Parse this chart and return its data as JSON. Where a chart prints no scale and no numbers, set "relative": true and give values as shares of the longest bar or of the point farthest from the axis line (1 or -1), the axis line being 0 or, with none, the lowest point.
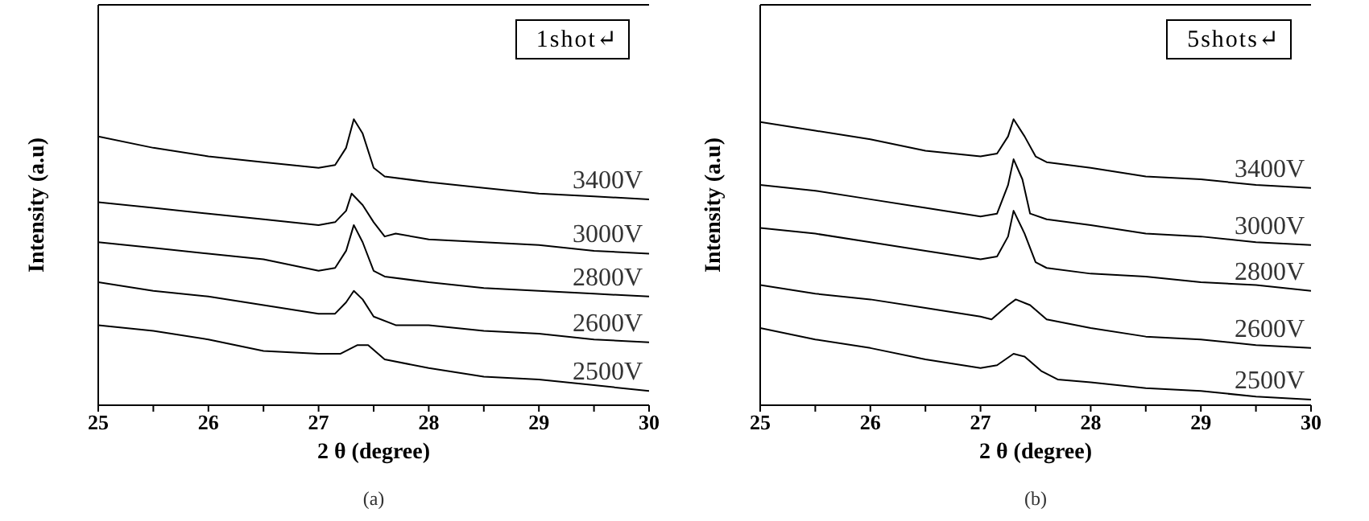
{
  "chart_data": [
    {
      "type": "line",
      "relative": true,
      "xlabel": "2 θ (degree)",
      "ylabel": "Intensity (a.u)",
      "annotations": [
        "1shot↵",
        "(a)"
      ],
      "xlim": [
        25,
        30
      ],
      "xticks": [
        25,
        {
          "value": 25.5,
          "label": null
        },
        26,
        {
          "value": 26.5,
          "label": null
        },
        27,
        {
          "value": 27.5,
          "label": null
        },
        28,
        {
          "value": 28.5,
          "label": null
        },
        29,
        {
          "value": 29.5,
          "label": null
        },
        30
      ],
      "tick_labels": "x",
      "series": [
        {
          "name": "3400V",
          "color": "#000000",
          "x": [
            25,
            25.5,
            26,
            26.5,
            27,
            27.15,
            27.25,
            27.32,
            27.4,
            27.5,
            27.6,
            28,
            28.5,
            29,
            29.5,
            30
          ],
          "values": [
            0.94,
            0.9,
            0.87,
            0.85,
            0.83,
            0.84,
            0.9,
            1.0,
            0.95,
            0.83,
            0.8,
            0.78,
            0.76,
            0.74,
            0.73,
            0.72
          ]
        },
        {
          "name": "3000V",
          "color": "#000000",
          "x": [
            25,
            25.5,
            26,
            26.5,
            27,
            27.15,
            27.25,
            27.3,
            27.4,
            27.5,
            27.6,
            27.7,
            28,
            28.5,
            29,
            29.5,
            30
          ],
          "values": [
            0.71,
            0.69,
            0.67,
            0.65,
            0.63,
            0.64,
            0.68,
            0.74,
            0.7,
            0.64,
            0.59,
            0.6,
            0.58,
            0.57,
            0.56,
            0.54,
            0.53
          ]
        },
        {
          "name": "2800V",
          "color": "#000000",
          "x": [
            25,
            25.5,
            26,
            26.5,
            27,
            27.15,
            27.25,
            27.32,
            27.4,
            27.5,
            27.6,
            28,
            28.5,
            29,
            29.5,
            30
          ],
          "values": [
            0.57,
            0.55,
            0.53,
            0.51,
            0.47,
            0.48,
            0.54,
            0.63,
            0.57,
            0.47,
            0.45,
            0.43,
            0.41,
            0.4,
            0.39,
            0.38
          ]
        },
        {
          "name": "2600V",
          "color": "#000000",
          "x": [
            25,
            25.5,
            26,
            26.5,
            27,
            27.15,
            27.25,
            27.32,
            27.4,
            27.5,
            27.7,
            28,
            28.5,
            29,
            29.5,
            30
          ],
          "values": [
            0.43,
            0.4,
            0.38,
            0.35,
            0.32,
            0.32,
            0.36,
            0.4,
            0.37,
            0.31,
            0.28,
            0.28,
            0.26,
            0.25,
            0.23,
            0.22
          ]
        },
        {
          "name": "2500V",
          "color": "#000000",
          "x": [
            25,
            25.5,
            26,
            26.5,
            27,
            27.2,
            27.35,
            27.45,
            27.6,
            28,
            28.5,
            29,
            29.5,
            30
          ],
          "values": [
            0.28,
            0.26,
            0.23,
            0.19,
            0.18,
            0.18,
            0.21,
            0.21,
            0.16,
            0.13,
            0.1,
            0.09,
            0.07,
            0.05
          ]
        }
      ]
    },
    {
      "type": "line",
      "relative": true,
      "xlabel": "2 θ (degree)",
      "ylabel": "Intensity (a.u)",
      "annotations": [
        "5shots↵",
        "(b)"
      ],
      "xlim": [
        25,
        30
      ],
      "xticks": [
        25,
        {
          "value": 25.5,
          "label": null
        },
        26,
        {
          "value": 26.5,
          "label": null
        },
        27,
        {
          "value": 27.5,
          "label": null
        },
        28,
        {
          "value": 28.5,
          "label": null
        },
        29,
        {
          "value": 29.5,
          "label": null
        },
        30
      ],
      "tick_labels": "x",
      "series": [
        {
          "name": "3400V",
          "color": "#000000",
          "x": [
            25,
            25.5,
            26,
            26.5,
            27,
            27.15,
            27.25,
            27.3,
            27.4,
            27.5,
            27.6,
            28,
            28.5,
            29,
            29.5,
            30
          ],
          "values": [
            0.99,
            0.96,
            0.93,
            0.89,
            0.87,
            0.88,
            0.94,
            1.0,
            0.94,
            0.87,
            0.85,
            0.83,
            0.8,
            0.79,
            0.77,
            0.76
          ]
        },
        {
          "name": "3000V",
          "color": "#000000",
          "x": [
            25,
            25.5,
            26,
            26.5,
            27,
            27.15,
            27.25,
            27.3,
            27.38,
            27.45,
            27.6,
            28,
            28.5,
            29,
            29.5,
            30
          ],
          "values": [
            0.77,
            0.75,
            0.72,
            0.69,
            0.66,
            0.67,
            0.77,
            0.86,
            0.79,
            0.67,
            0.65,
            0.63,
            0.6,
            0.59,
            0.57,
            0.56
          ]
        },
        {
          "name": "2800V",
          "color": "#000000",
          "x": [
            25,
            25.5,
            26,
            26.5,
            27,
            27.15,
            27.25,
            27.3,
            27.4,
            27.5,
            27.6,
            28,
            28.5,
            29,
            29.5,
            30
          ],
          "values": [
            0.62,
            0.6,
            0.57,
            0.54,
            0.51,
            0.52,
            0.59,
            0.68,
            0.6,
            0.5,
            0.48,
            0.46,
            0.45,
            0.43,
            0.42,
            0.4
          ]
        },
        {
          "name": "2600V",
          "color": "#000000",
          "x": [
            25,
            25.5,
            26,
            26.5,
            27,
            27.1,
            27.25,
            27.32,
            27.45,
            27.6,
            28,
            28.5,
            29,
            29.5,
            30
          ],
          "values": [
            0.42,
            0.39,
            0.37,
            0.34,
            0.31,
            0.3,
            0.35,
            0.37,
            0.35,
            0.3,
            0.27,
            0.24,
            0.23,
            0.21,
            0.2
          ]
        },
        {
          "name": "2500V",
          "color": "#000000",
          "x": [
            25,
            25.5,
            26,
            26.5,
            27,
            27.15,
            27.3,
            27.4,
            27.55,
            27.7,
            28,
            28.5,
            29,
            29.5,
            30
          ],
          "values": [
            0.27,
            0.23,
            0.2,
            0.16,
            0.13,
            0.14,
            0.18,
            0.17,
            0.12,
            0.09,
            0.08,
            0.06,
            0.05,
            0.03,
            0.02
          ]
        }
      ]
    }
  ]
}
